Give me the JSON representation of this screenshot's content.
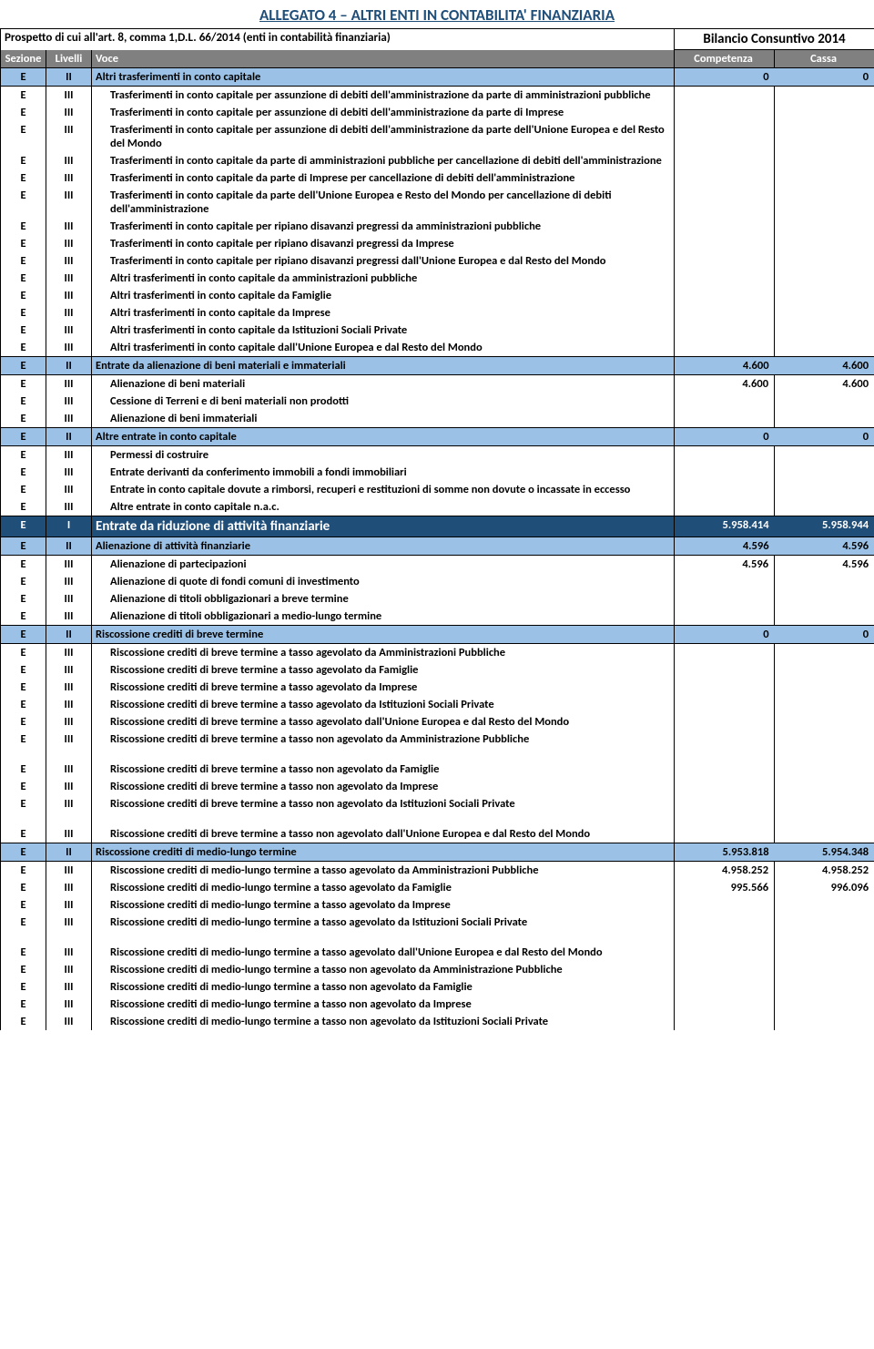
{
  "title": "ALLEGATO 4 – ALTRI ENTI IN CONTABILITA' FINANZIARIA",
  "subtitle": "Prospetto di cui all'art. 8, comma 1,D.L. 66/2014 (enti in contabilità finanziaria)",
  "bilancio": "Bilancio Consuntivo 2014",
  "header": {
    "sezione": "Sezione",
    "livelli": "Livelli",
    "voce": "Voce",
    "comp": "Competenza",
    "cassa": "Cassa"
  },
  "colors": {
    "l1": "#1f4e79",
    "l2": "#9bc2e6",
    "headsub": "#808080"
  },
  "rows": [
    {
      "lvl": "II",
      "voce": "Altri trasferimenti in conto capitale",
      "comp": "0",
      "cassa": "0",
      "type": "l2"
    },
    {
      "lvl": "III",
      "voce": "Trasferimenti in conto capitale per assunzione di debiti dell'amministrazione da parte di amministrazioni pubbliche"
    },
    {
      "lvl": "III",
      "voce": "Trasferimenti in conto capitale per assunzione di debiti dell'amministrazione da parte di Imprese"
    },
    {
      "lvl": "III",
      "voce": "Trasferimenti in conto capitale per assunzione di debiti dell'amministrazione da parte dell'Unione Europea e del Resto del Mondo"
    },
    {
      "lvl": "III",
      "voce": "Trasferimenti in conto capitale da parte di amministrazioni pubbliche per cancellazione di debiti dell'amministrazione"
    },
    {
      "lvl": "III",
      "voce": "Trasferimenti in conto capitale da parte di Imprese per cancellazione di debiti dell'amministrazione"
    },
    {
      "lvl": "III",
      "voce": "Trasferimenti in conto capitale da parte dell'Unione Europea e Resto del Mondo per cancellazione di debiti dell'amministrazione"
    },
    {
      "lvl": "III",
      "voce": "Trasferimenti in conto capitale per ripiano disavanzi pregressi da amministrazioni pubbliche"
    },
    {
      "lvl": "III",
      "voce": "Trasferimenti in conto capitale per ripiano disavanzi pregressi da Imprese"
    },
    {
      "lvl": "III",
      "voce": "Trasferimenti in conto capitale per ripiano disavanzi pregressi dall'Unione Europea e dal Resto del Mondo"
    },
    {
      "lvl": "III",
      "voce": "Altri trasferimenti in conto capitale da amministrazioni pubbliche"
    },
    {
      "lvl": "III",
      "voce": "Altri trasferimenti in conto capitale da Famiglie"
    },
    {
      "lvl": "III",
      "voce": "Altri trasferimenti in conto capitale da Imprese"
    },
    {
      "lvl": "III",
      "voce": "Altri trasferimenti in conto capitale da Istituzioni Sociali Private"
    },
    {
      "lvl": "III",
      "voce": "Altri trasferimenti in conto capitale dall'Unione Europea e dal Resto del Mondo"
    },
    {
      "lvl": "II",
      "voce": "Entrate da alienazione di beni materiali e immateriali",
      "comp": "4.600",
      "cassa": "4.600",
      "type": "l2"
    },
    {
      "lvl": "III",
      "voce": "Alienazione di beni materiali",
      "comp": "4.600",
      "cassa": "4.600"
    },
    {
      "lvl": "III",
      "voce": "Cessione di Terreni e di beni materiali non prodotti"
    },
    {
      "lvl": "III",
      "voce": "Alienazione di beni immateriali"
    },
    {
      "lvl": "II",
      "voce": "Altre entrate in conto capitale",
      "comp": "0",
      "cassa": "0",
      "type": "l2"
    },
    {
      "lvl": "III",
      "voce": "Permessi di costruire"
    },
    {
      "lvl": "III",
      "voce": "Entrate derivanti da conferimento immobili a fondi immobiliari"
    },
    {
      "lvl": "III",
      "voce": "Entrate in conto capitale dovute a rimborsi, recuperi e restituzioni di somme non dovute o incassate in eccesso"
    },
    {
      "lvl": "III",
      "voce": "Altre entrate in conto capitale n.a.c."
    },
    {
      "lvl": "I",
      "voce": "Entrate da riduzione di attività finanziarie",
      "comp": "5.958.414",
      "cassa": "5.958.944",
      "type": "l1"
    },
    {
      "lvl": "II",
      "voce": "Alienazione di attività finanziarie",
      "comp": "4.596",
      "cassa": "4.596",
      "type": "l2"
    },
    {
      "lvl": "III",
      "voce": "Alienazione di partecipazioni",
      "comp": "4.596",
      "cassa": "4.596"
    },
    {
      "lvl": "III",
      "voce": "Alienazione di quote di fondi comuni di investimento"
    },
    {
      "lvl": "III",
      "voce": "Alienazione di titoli obbligazionari a breve termine"
    },
    {
      "lvl": "III",
      "voce": "Alienazione di titoli obbligazionari a medio-lungo termine"
    },
    {
      "lvl": "II",
      "voce": "Riscossione crediti di breve termine",
      "comp": "0",
      "cassa": "0",
      "type": "l2"
    },
    {
      "lvl": "III",
      "voce": "Riscossione crediti di breve termine a tasso agevolato da Amministrazioni Pubbliche"
    },
    {
      "lvl": "III",
      "voce": "Riscossione crediti di breve termine a tasso agevolato da Famiglie"
    },
    {
      "lvl": "III",
      "voce": "Riscossione crediti di breve termine a tasso agevolato da Imprese"
    },
    {
      "lvl": "III",
      "voce": "Riscossione crediti di breve termine a tasso agevolato da Istituzioni Sociali Private"
    },
    {
      "lvl": "III",
      "voce": "Riscossione crediti di breve termine a tasso agevolato dall'Unione Europea e dal Resto del Mondo"
    },
    {
      "lvl": "III",
      "voce": "Riscossione crediti di breve termine a tasso non agevolato da Amministrazione Pubbliche",
      "pad": true
    },
    {
      "lvl": "III",
      "voce": "Riscossione crediti di breve termine a tasso non agevolato da Famiglie"
    },
    {
      "lvl": "III",
      "voce": "Riscossione crediti di breve termine a tasso non agevolato da Imprese"
    },
    {
      "lvl": "III",
      "voce": "Riscossione crediti di breve termine a tasso non agevolato da Istituzioni Sociali Private",
      "pad": true
    },
    {
      "lvl": "III",
      "voce": "Riscossione crediti di breve termine a tasso non agevolato dall'Unione Europea e dal Resto del Mondo"
    },
    {
      "lvl": "II",
      "voce": "Riscossione crediti di medio-lungo termine",
      "comp": "5.953.818",
      "cassa": "5.954.348",
      "type": "l2"
    },
    {
      "lvl": "III",
      "voce": "Riscossione crediti di medio-lungo termine a tasso agevolato da Amministrazioni Pubbliche",
      "comp": "4.958.252",
      "cassa": "4.958.252"
    },
    {
      "lvl": "III",
      "voce": "Riscossione crediti di medio-lungo termine a tasso agevolato da Famiglie",
      "comp": "995.566",
      "cassa": "996.096"
    },
    {
      "lvl": "III",
      "voce": "Riscossione crediti di medio-lungo termine a tasso agevolato da Imprese"
    },
    {
      "lvl": "III",
      "voce": "Riscossione crediti di medio-lungo termine a tasso agevolato da Istituzioni Sociali Private",
      "pad": true
    },
    {
      "lvl": "III",
      "voce": "Riscossione crediti di medio-lungo termine a tasso agevolato dall'Unione Europea e dal Resto del Mondo"
    },
    {
      "lvl": "III",
      "voce": "Riscossione crediti di medio-lungo termine a tasso non agevolato da Amministrazione Pubbliche"
    },
    {
      "lvl": "III",
      "voce": "Riscossione crediti di medio-lungo termine a tasso non agevolato da Famiglie"
    },
    {
      "lvl": "III",
      "voce": "Riscossione crediti di medio-lungo termine a tasso non agevolato da Imprese"
    },
    {
      "lvl": "III",
      "voce": "Riscossione crediti di medio-lungo termine a tasso non agevolato da Istituzioni Sociali Private"
    }
  ]
}
